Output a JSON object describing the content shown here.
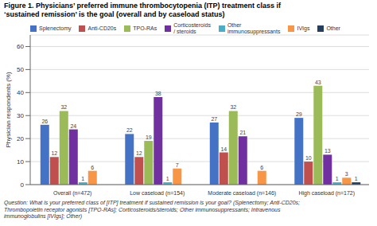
{
  "chart_data": {
    "type": "bar",
    "title": "Figure 1. Physicians’ preferred immune thrombocytopenia (ITP) treatment class if\n‘sustained remission’ is the goal (overall and by caseload status)",
    "y_label": "Physician respondents (%)",
    "annotations": [
      "Question: What is your preferred class of [ITP] treatment if sustained remission is your goal? (Splenectomy; Anti-CD20s;\nThrombopoietin receptor agonists [TPO-RAs]; Corticosteroids/steroids; Other immunosuppressants; Intravenous\nimmunoglobulins [IVIgs]; Other)"
    ],
    "categories": [
      "Overall (n=472)",
      "Low caseload (n=154)",
      "Moderate caseload (n=146)",
      "High caseload (n=172)"
    ],
    "series": [
      {
        "name": "Splenectomy",
        "color": "#4472C4",
        "values": [
          26,
          22,
          27,
          29
        ]
      },
      {
        "name": "Anti-CD20s",
        "color": "#C0504D",
        "values": [
          12,
          12,
          14,
          10
        ]
      },
      {
        "name": "TPO-RAs",
        "color": "#9BBB59",
        "values": [
          32,
          19,
          32,
          43
        ]
      },
      {
        "name": "Corticosteroids\n/ steroids",
        "color": "#7030A0",
        "values": [
          24,
          38,
          21,
          13
        ]
      },
      {
        "name": "Other\nimmunosuppressants",
        "color": "#4BACC6",
        "values": [
          1,
          1,
          0,
          1
        ],
        "value_labels": [
          "1",
          "1",
          null,
          "1"
        ]
      },
      {
        "name": "IVIgs",
        "color": "#F79646",
        "values": [
          6,
          7,
          6,
          3
        ]
      },
      {
        "name": "Other",
        "color": "#243F60",
        "values": [
          0,
          0,
          0,
          1
        ],
        "value_labels": [
          null,
          null,
          null,
          "1"
        ]
      }
    ],
    "ylim": [
      0,
      65
    ],
    "yticks": [
      0,
      10,
      20,
      30,
      40,
      50,
      60
    ],
    "grid": true,
    "legend": "top",
    "data_labels": true
  }
}
